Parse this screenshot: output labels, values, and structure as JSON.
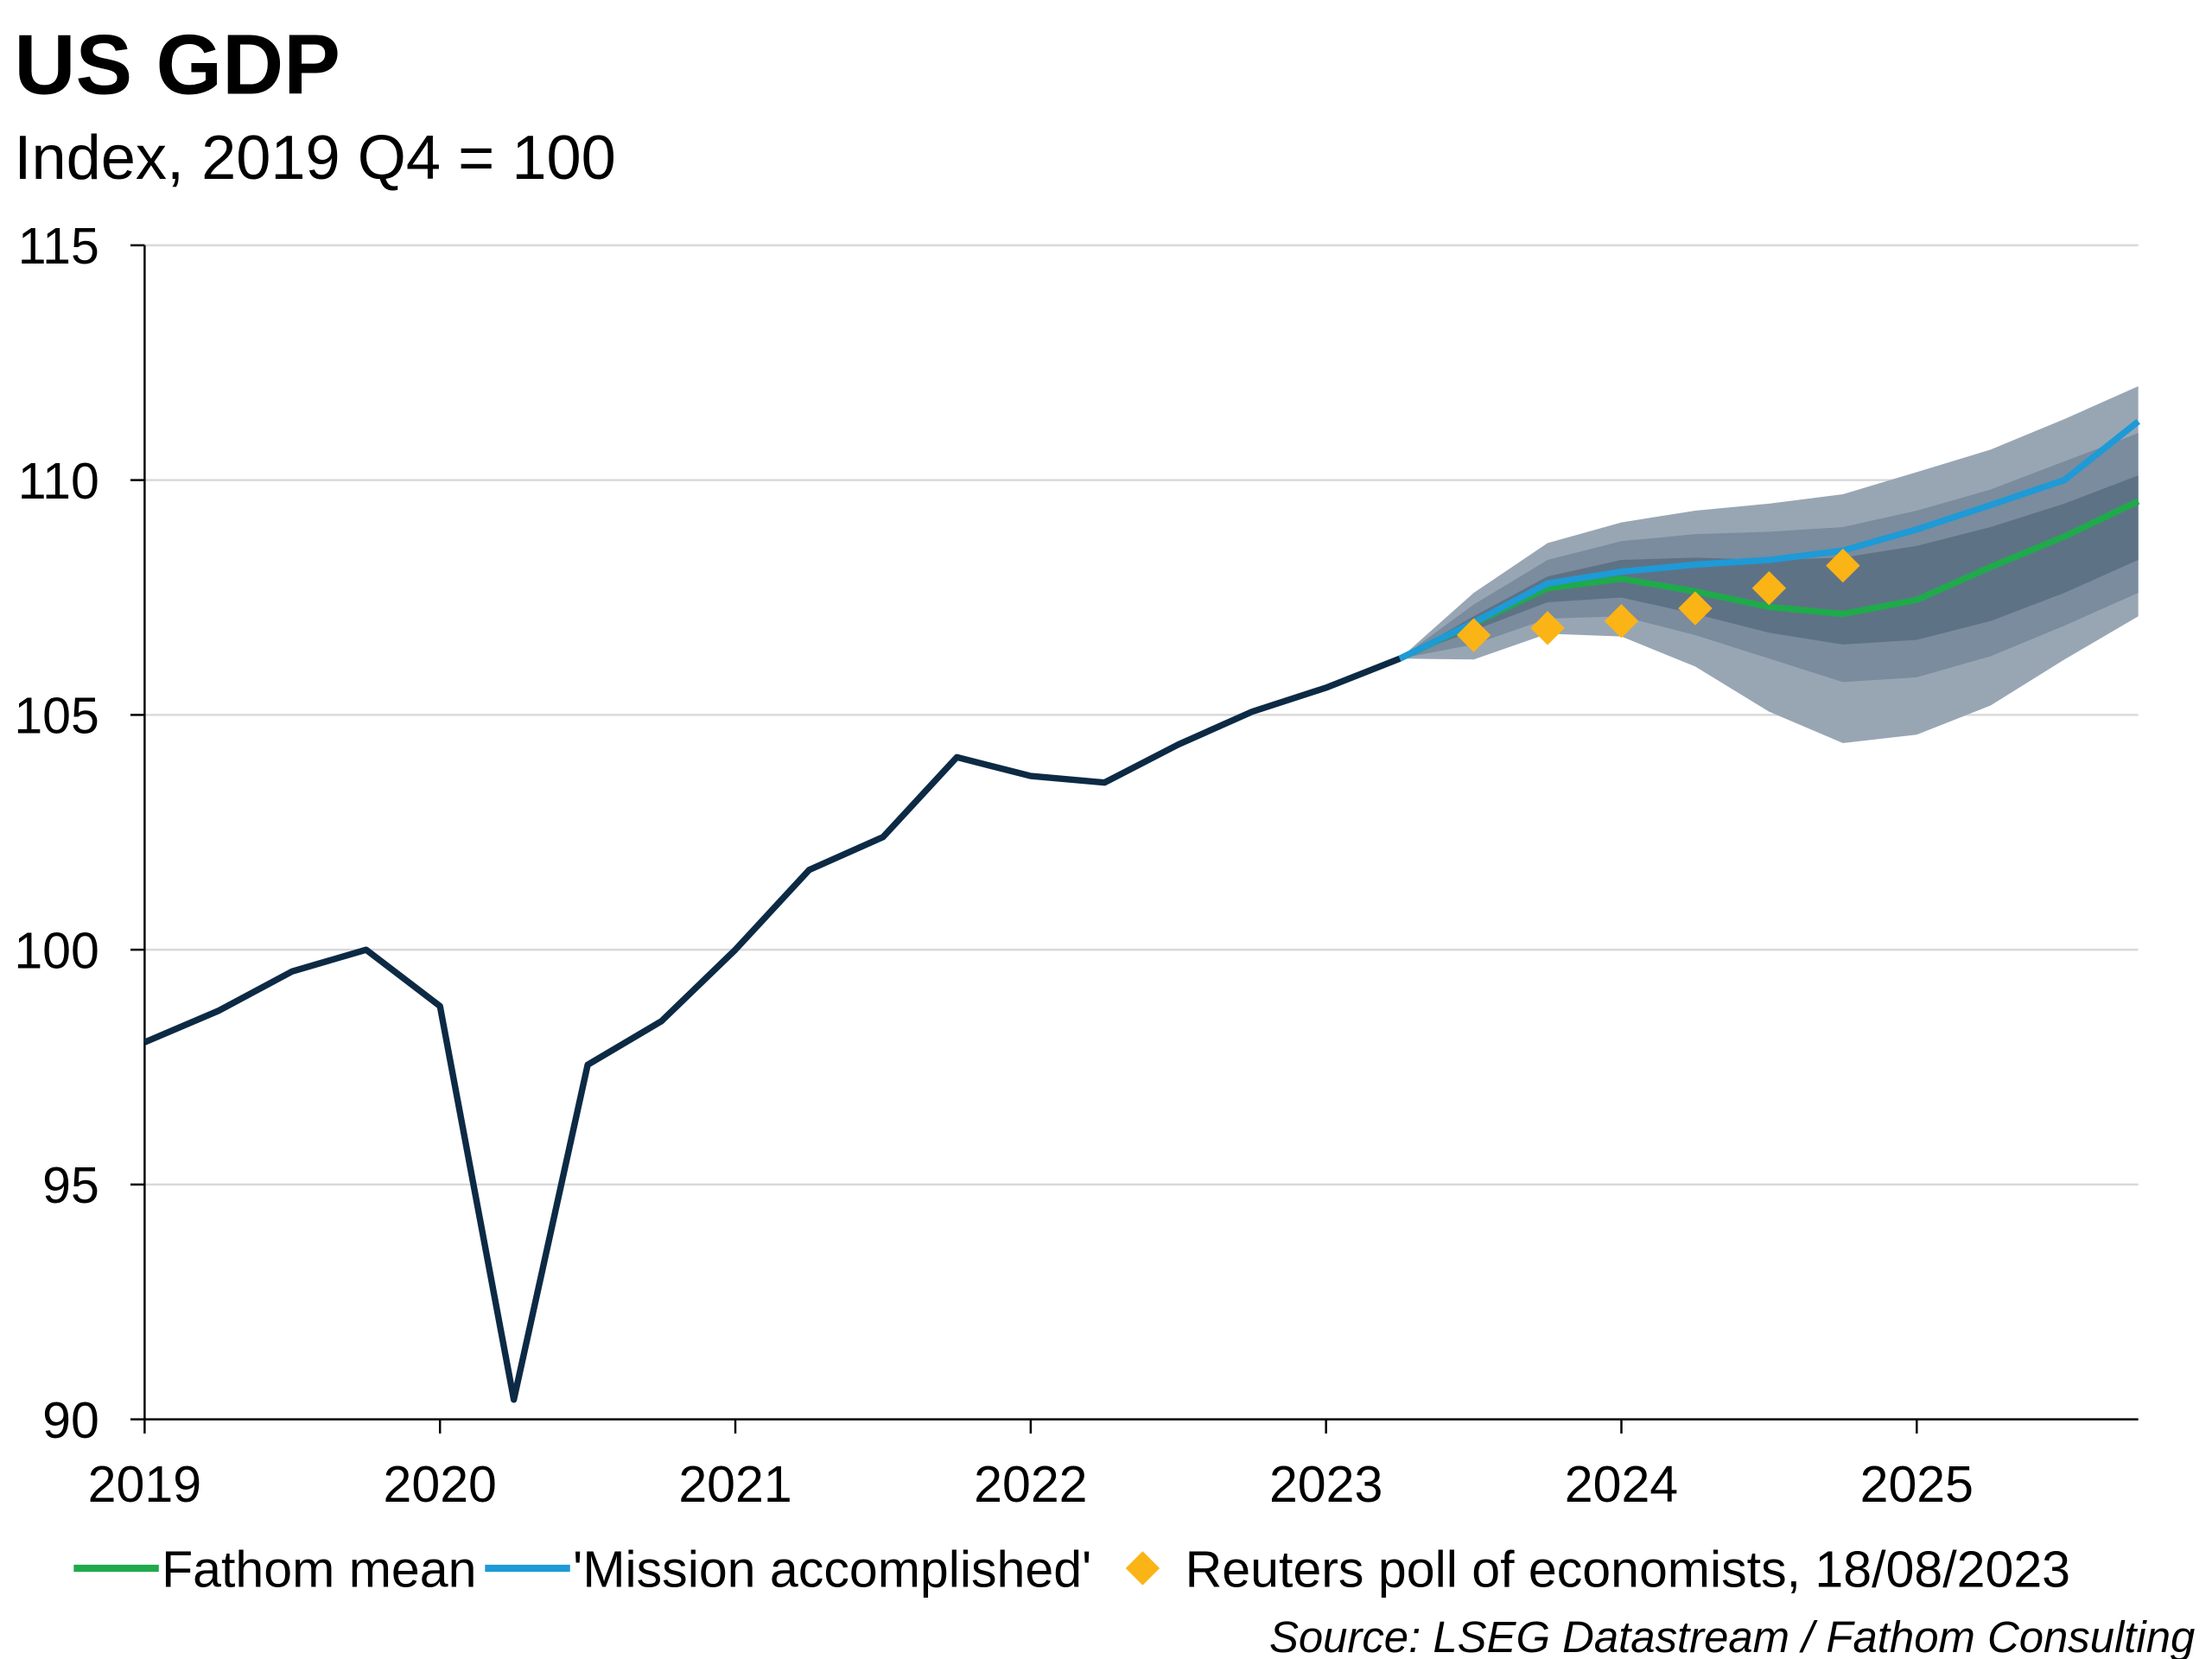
{
  "chart_data": {
    "type": "line",
    "title": "US GDP",
    "subtitle": "Index, 2019 Q4 = 100",
    "source": "Source: LSEG Datastream / Fathom Consulting",
    "xlim": [
      2019,
      2025.75
    ],
    "xticks": [
      2019,
      2020,
      2021,
      2022,
      2023,
      2024,
      2025
    ],
    "ylim": [
      90,
      115
    ],
    "yticks": [
      90,
      95,
      100,
      105,
      110,
      115
    ],
    "grid": true,
    "bands": [
      {
        "color": "#98a6b4",
        "x": [
          2023.25,
          2023.5,
          2023.75,
          2024,
          2024.25,
          2024.5,
          2024.75,
          2025,
          2025.25,
          2025.5,
          2025.75
        ],
        "upper": [
          106.2,
          107.6,
          108.66,
          109.1,
          109.35,
          109.5,
          109.7,
          110.17,
          110.65,
          111.3,
          112.0
        ],
        "lower": [
          106.2,
          106.18,
          106.73,
          106.67,
          106.03,
          105.07,
          104.4,
          104.58,
          105.2,
          106.18,
          107.1
        ]
      },
      {
        "color": "#7a8c9e",
        "x": [
          2023.25,
          2023.5,
          2023.75,
          2024,
          2024.25,
          2024.5,
          2024.75,
          2025,
          2025.25,
          2025.5,
          2025.75
        ],
        "upper": [
          106.2,
          107.35,
          108.3,
          108.7,
          108.85,
          108.9,
          109.0,
          109.35,
          109.8,
          110.4,
          111.0
        ],
        "lower": [
          106.2,
          106.5,
          107.05,
          107.1,
          106.7,
          106.2,
          105.7,
          105.8,
          106.25,
          106.9,
          107.6
        ]
      },
      {
        "color": "#5e7286",
        "x": [
          2023.25,
          2023.5,
          2023.75,
          2024,
          2024.25,
          2024.5,
          2024.75,
          2025,
          2025.25,
          2025.5,
          2025.75
        ],
        "upper": [
          106.2,
          107.1,
          107.95,
          108.3,
          108.35,
          108.3,
          108.35,
          108.6,
          109.0,
          109.5,
          110.1
        ],
        "lower": [
          106.2,
          106.8,
          107.4,
          107.5,
          107.15,
          106.75,
          106.5,
          106.6,
          107.0,
          107.6,
          108.3
        ]
      }
    ],
    "series": [
      {
        "color": "#0d2a45",
        "style": "line",
        "x": [
          2019,
          2019.25,
          2019.5,
          2019.75,
          2020,
          2020.25,
          2020.5,
          2020.75,
          2021,
          2021.25,
          2021.5,
          2021.75,
          2022,
          2022.25,
          2022.5,
          2022.75,
          2023,
          2023.25
        ],
        "values": [
          98.03,
          98.7,
          99.54,
          100.0,
          98.8,
          90.42,
          97.55,
          98.48,
          100.0,
          101.7,
          102.4,
          104.1,
          103.7,
          103.56,
          104.37,
          105.07,
          105.58,
          106.2
        ]
      },
      {
        "name": "Fathom mean",
        "color": "#1faa4b",
        "style": "line",
        "x": [
          2023.25,
          2023.5,
          2023.75,
          2024,
          2024.25,
          2024.5,
          2024.75,
          2025,
          2025.25,
          2025.5,
          2025.75
        ],
        "values": [
          106.2,
          106.95,
          107.7,
          107.9,
          107.63,
          107.3,
          107.15,
          107.45,
          108.15,
          108.8,
          109.55
        ]
      },
      {
        "name": "'Mission accomplished'",
        "color": "#1e9ad6",
        "style": "line",
        "x": [
          2023.25,
          2023.5,
          2023.75,
          2024,
          2024.25,
          2024.5,
          2024.75,
          2025,
          2025.25,
          2025.5,
          2025.75
        ],
        "values": [
          106.2,
          106.97,
          107.8,
          108.05,
          108.2,
          108.3,
          108.5,
          108.95,
          109.47,
          110.0,
          111.25
        ]
      },
      {
        "name": "Reuters poll of economists, 18/08/2023",
        "color": "#fbb416",
        "style": "diamond",
        "x": [
          2023.5,
          2023.75,
          2024,
          2024.25,
          2024.5,
          2024.75
        ],
        "values": [
          106.7,
          106.85,
          107.0,
          107.27,
          107.7,
          108.18
        ]
      }
    ]
  }
}
